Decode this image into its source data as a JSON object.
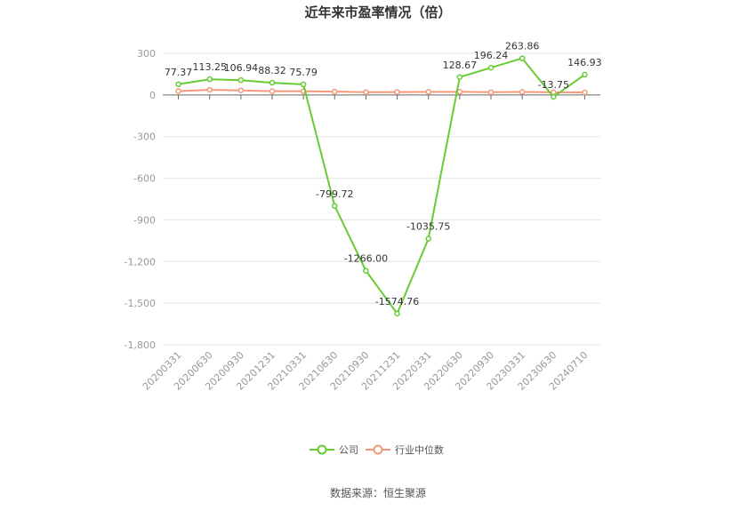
{
  "chart_data": {
    "type": "line",
    "title": "近年来市盈率情况（倍）",
    "categories": [
      "20200331",
      "20200630",
      "20200930",
      "20201231",
      "20210331",
      "20210630",
      "20210930",
      "20211231",
      "20220331",
      "20220630",
      "20220930",
      "20230331",
      "20230630",
      "20240710"
    ],
    "series": [
      {
        "name": "公司",
        "color": "#66cc33",
        "values": [
          77.37,
          113.25,
          106.94,
          88.32,
          75.79,
          -799.72,
          -1266.0,
          -1574.76,
          -1035.75,
          128.67,
          196.24,
          263.86,
          -13.75,
          146.93
        ],
        "labels": [
          "77.37",
          "113.25",
          "106.94",
          "88.32",
          "75.79",
          "-799.72",
          "-1266.00",
          "-1574.76",
          "-1035.75",
          "128.67",
          "196.24",
          "263.86",
          "-13.75",
          "146.93"
        ]
      },
      {
        "name": "行业中位数",
        "color": "#f4997a",
        "values": [
          28,
          37,
          33,
          27,
          27,
          24,
          20,
          21,
          22,
          23,
          20,
          22,
          19,
          18
        ]
      }
    ],
    "yticks": [
      "300",
      "0",
      "-300",
      "-600",
      "-900",
      "-1,200",
      "-1,500",
      "-1,800"
    ],
    "ylim": [
      -1800,
      300
    ],
    "grid": true,
    "legend_position": "bottom"
  },
  "source": "数据来源：恒生聚源"
}
